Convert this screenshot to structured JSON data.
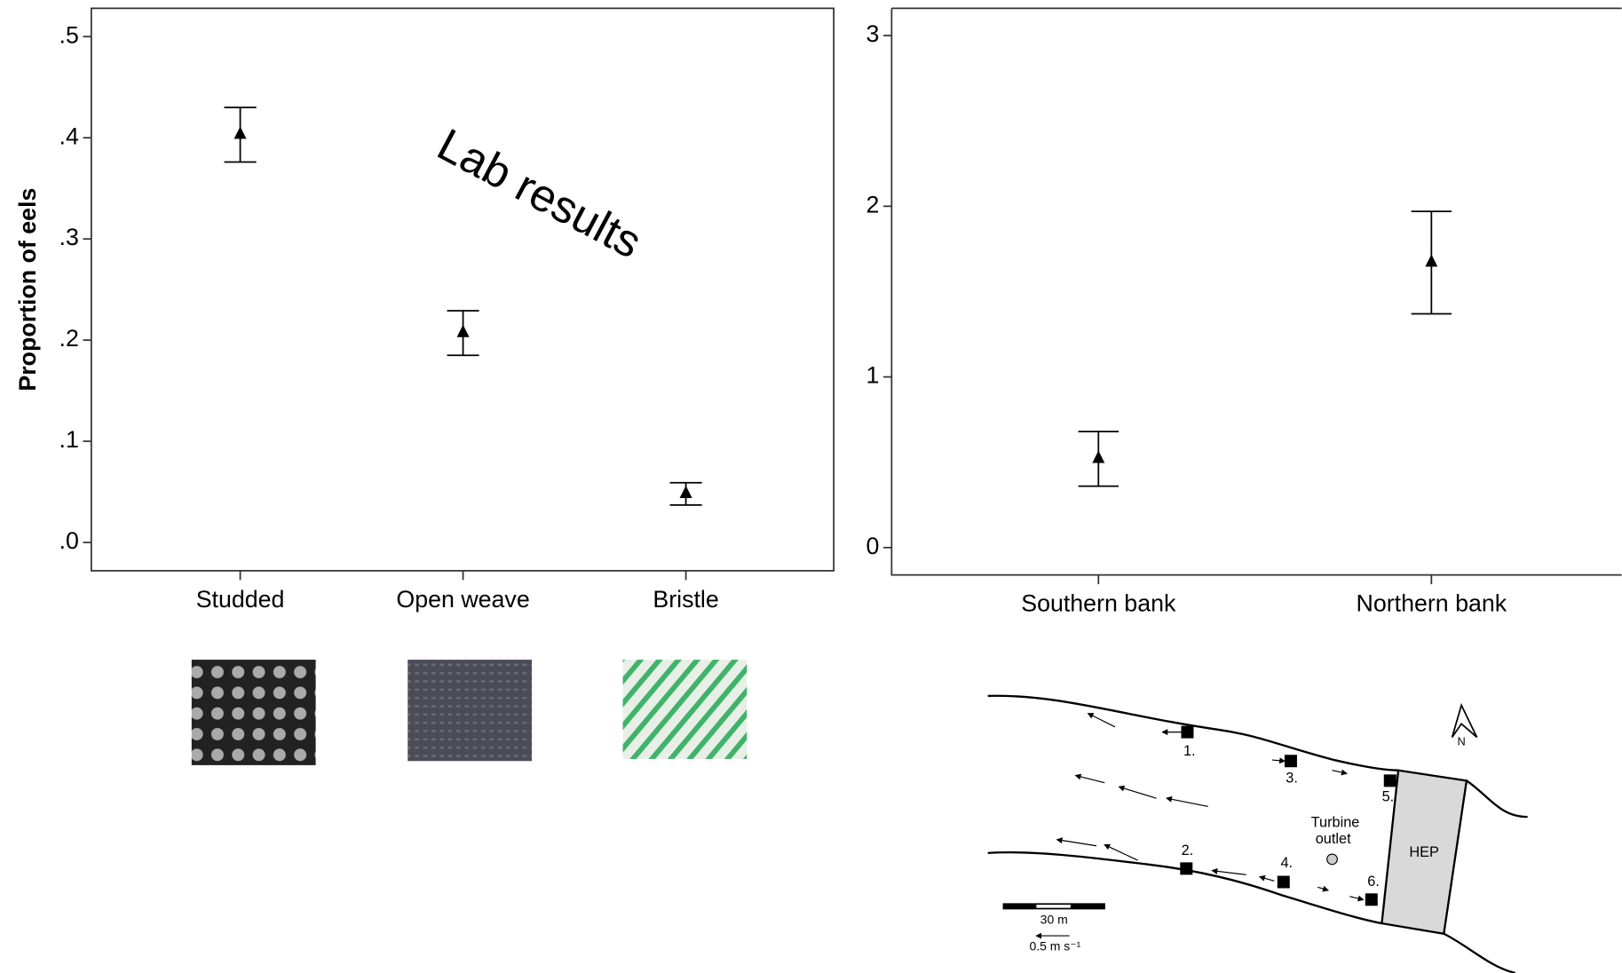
{
  "chart_data": [
    {
      "type": "errorbar",
      "y_label": "Proportion of eels",
      "annotation": "Lab results",
      "categories": [
        "Studded",
        "Open weave",
        "Bristle"
      ],
      "values": [
        0.403,
        0.207,
        0.048
      ],
      "errors": [
        0.027,
        0.022,
        0.011
      ],
      "color": "#000000",
      "ylim": [
        -0.028,
        0.528
      ],
      "yticks": [
        {
          "value": 0,
          "label": ".0"
        },
        {
          "value": 0.1,
          "label": ".1"
        },
        {
          "value": 0.2,
          "label": ".2"
        },
        {
          "value": 0.3,
          "label": ".3"
        },
        {
          "value": 0.4,
          "label": ".4"
        },
        {
          "value": 0.5,
          "label": ".5"
        }
      ]
    },
    {
      "type": "errorbar",
      "categories": [
        "Southern bank",
        "Northern bank"
      ],
      "values": [
        0.52,
        1.67
      ],
      "errors": [
        0.16,
        0.3
      ],
      "color": "#000000",
      "ylim": [
        -0.16,
        3.16
      ],
      "yticks": [
        0,
        1,
        2,
        3
      ]
    }
  ],
  "map": {
    "sites": [
      "1.",
      "2.",
      "3.",
      "4.",
      "5.",
      "6."
    ],
    "turbine_label": [
      "Turbine",
      "outlet"
    ],
    "hep_label": "HEP",
    "north_label": "N",
    "scale_label": "30 m",
    "velocity_label": "0.5 m s⁻¹"
  }
}
